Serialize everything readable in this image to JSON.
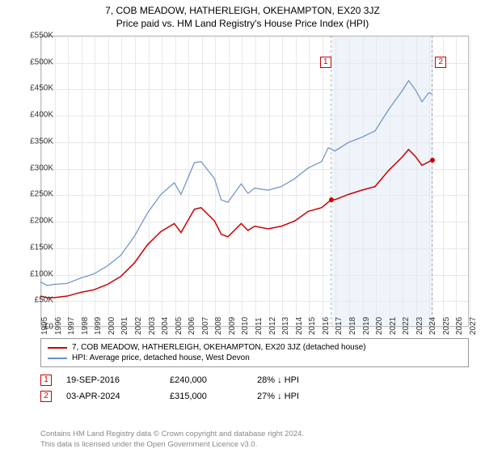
{
  "title": "7, COB MEADOW, HATHERLEIGH, OKEHAMPTON, EX20 3JZ",
  "subtitle": "Price paid vs. HM Land Registry's House Price Index (HPI)",
  "chart": {
    "type": "line",
    "xlim": [
      1995,
      2027
    ],
    "ylim": [
      0,
      550000
    ],
    "ytick_step": 50000,
    "xtick_step": 1,
    "grid_color": "#e8e8e8",
    "background_color": "#ffffff",
    "label_fontsize": 10,
    "title_fontsize": 12,
    "y_labels": [
      "£0",
      "£50K",
      "£100K",
      "£150K",
      "£200K",
      "£250K",
      "£300K",
      "£350K",
      "£400K",
      "£450K",
      "£500K",
      "£550K"
    ],
    "x_labels": [
      "1995",
      "1996",
      "1997",
      "1998",
      "1999",
      "2000",
      "2001",
      "2002",
      "2003",
      "2004",
      "2005",
      "2006",
      "2007",
      "2008",
      "2009",
      "2010",
      "2011",
      "2012",
      "2013",
      "2014",
      "2015",
      "2016",
      "2017",
      "2018",
      "2019",
      "2020",
      "2021",
      "2022",
      "2023",
      "2024",
      "2025",
      "2026",
      "2027"
    ],
    "shaded_regions": [
      {
        "x_start": 2016.72,
        "x_end": 2024.26,
        "color": "#e4ecf7"
      }
    ],
    "series": [
      {
        "name": "property_price",
        "label": "7, COB MEADOW, HATHERLEIGH, OKEHAMPTON, EX20 3JZ (detached house)",
        "color": "#cc0000",
        "line_width": 1.5,
        "data": [
          [
            1995,
            58000
          ],
          [
            1995.5,
            55000
          ],
          [
            1996,
            55000
          ],
          [
            1997,
            58000
          ],
          [
            1998,
            65000
          ],
          [
            1999,
            70000
          ],
          [
            2000,
            80000
          ],
          [
            2001,
            95000
          ],
          [
            2002,
            120000
          ],
          [
            2003,
            155000
          ],
          [
            2004,
            180000
          ],
          [
            2005,
            195000
          ],
          [
            2005.5,
            178000
          ],
          [
            2006,
            200000
          ],
          [
            2006.5,
            222000
          ],
          [
            2007,
            225000
          ],
          [
            2008,
            200000
          ],
          [
            2008.5,
            175000
          ],
          [
            2009,
            170000
          ],
          [
            2010,
            195000
          ],
          [
            2010.5,
            182000
          ],
          [
            2011,
            190000
          ],
          [
            2012,
            185000
          ],
          [
            2013,
            190000
          ],
          [
            2014,
            200000
          ],
          [
            2015,
            218000
          ],
          [
            2016,
            225000
          ],
          [
            2016.72,
            240000
          ],
          [
            2017,
            240000
          ],
          [
            2018,
            250000
          ],
          [
            2019,
            258000
          ],
          [
            2020,
            265000
          ],
          [
            2021,
            295000
          ],
          [
            2022,
            320000
          ],
          [
            2022.5,
            335000
          ],
          [
            2023,
            322000
          ],
          [
            2023.5,
            305000
          ],
          [
            2024.26,
            315000
          ]
        ]
      },
      {
        "name": "hpi",
        "label": "HPI: Average price, detached house, West Devon",
        "color": "#6b8fc9",
        "line_width": 1.2,
        "data": [
          [
            1995,
            85000
          ],
          [
            1995.5,
            78000
          ],
          [
            1996,
            80000
          ],
          [
            1997,
            82000
          ],
          [
            1998,
            92000
          ],
          [
            1999,
            100000
          ],
          [
            2000,
            115000
          ],
          [
            2001,
            135000
          ],
          [
            2002,
            170000
          ],
          [
            2003,
            215000
          ],
          [
            2004,
            250000
          ],
          [
            2005,
            272000
          ],
          [
            2005.5,
            250000
          ],
          [
            2006,
            280000
          ],
          [
            2006.5,
            310000
          ],
          [
            2007,
            312000
          ],
          [
            2008,
            280000
          ],
          [
            2008.5,
            240000
          ],
          [
            2009,
            235000
          ],
          [
            2010,
            270000
          ],
          [
            2010.5,
            252000
          ],
          [
            2011,
            262000
          ],
          [
            2012,
            258000
          ],
          [
            2013,
            265000
          ],
          [
            2014,
            280000
          ],
          [
            2015,
            300000
          ],
          [
            2016,
            312000
          ],
          [
            2016.5,
            338000
          ],
          [
            2017,
            332000
          ],
          [
            2018,
            348000
          ],
          [
            2019,
            358000
          ],
          [
            2020,
            370000
          ],
          [
            2021,
            410000
          ],
          [
            2022,
            445000
          ],
          [
            2022.5,
            465000
          ],
          [
            2023,
            448000
          ],
          [
            2023.5,
            425000
          ],
          [
            2024,
            442000
          ],
          [
            2024.26,
            440000
          ]
        ]
      }
    ],
    "markers": [
      {
        "id": "1",
        "x": 2016.72,
        "y": 240000,
        "box_color": "#cc0000",
        "box_y": 500000,
        "box_x": 2016.3
      },
      {
        "id": "2",
        "x": 2024.26,
        "y": 315000,
        "box_color": "#cc0000",
        "box_y": 500000,
        "box_x": 2024.9
      }
    ]
  },
  "legend": {
    "items": [
      {
        "color": "#cc0000",
        "label": "7, COB MEADOW, HATHERLEIGH, OKEHAMPTON, EX20 3JZ (detached house)"
      },
      {
        "color": "#6b8fc9",
        "label": "HPI: Average price, detached house, West Devon"
      }
    ]
  },
  "transactions": [
    {
      "marker": "1",
      "marker_color": "#cc0000",
      "date": "19-SEP-2016",
      "price": "£240,000",
      "pct": "28%",
      "arrow": "↓",
      "rel": "HPI"
    },
    {
      "marker": "2",
      "marker_color": "#cc0000",
      "date": "03-APR-2024",
      "price": "£315,000",
      "pct": "27%",
      "arrow": "↓",
      "rel": "HPI"
    }
  ],
  "footer": {
    "line1": "Contains HM Land Registry data © Crown copyright and database right 2024.",
    "line2": "This data is licensed under the Open Government Licence v3.0."
  }
}
